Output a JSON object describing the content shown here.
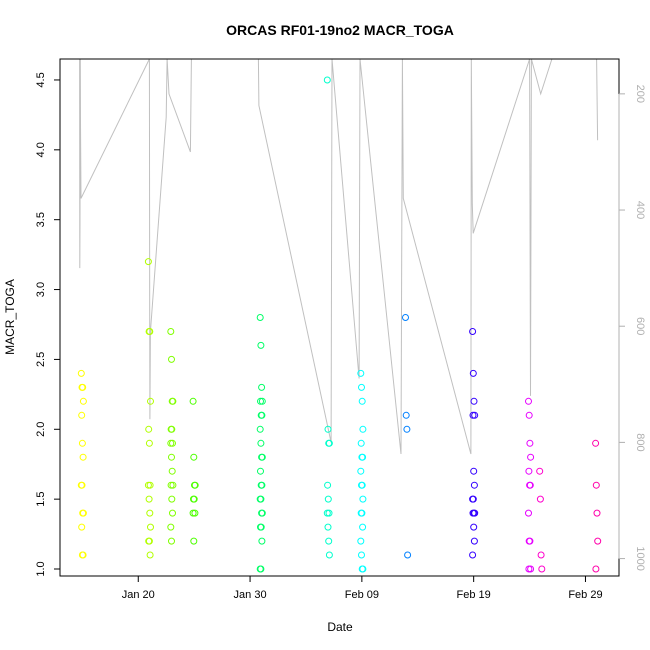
{
  "chart_data": {
    "type": "scatter",
    "title": "ORCAS RF01-19no2 MACR_TOGA",
    "xlabel": "Date",
    "ylabel": "MACR_TOGA",
    "x_tick_labels": [
      "Jan 20",
      "Jan 30",
      "Feb 09",
      "Feb 19",
      "Feb 29"
    ],
    "x_tick_values": [
      "2016-01-20",
      "2016-01-30",
      "2016-02-09",
      "2016-02-19",
      "2016-02-29"
    ],
    "xlim": [
      "2016-01-13",
      "2016-03-03"
    ],
    "ylim": [
      0.95,
      4.65
    ],
    "y_ticks": [
      "1.0",
      "1.5",
      "2.0",
      "2.5",
      "3.0",
      "3.5",
      "4.0",
      "4.5"
    ],
    "right_axis": {
      "label": "",
      "ticks": [
        "200",
        "400",
        "600",
        "800",
        "1000"
      ],
      "reversed": true,
      "range": [
        140,
        1030
      ],
      "color": "#b0b0b0"
    },
    "grid": false,
    "legend": "none",
    "series": [
      {
        "flight": "RF01",
        "date": "2016-01-15",
        "color": "#ffff00",
        "values": [
          2.4,
          2.3,
          2.3,
          2.2,
          2.1,
          1.9,
          1.8,
          1.6,
          1.6,
          1.4,
          1.4,
          1.3,
          1.1,
          1.1
        ]
      },
      {
        "flight": "RF02",
        "date": "2016-01-21",
        "color": "#b2ff00",
        "values": [
          3.2,
          2.7,
          2.7,
          2.2,
          2.0,
          1.9,
          1.6,
          1.6,
          1.5,
          1.4,
          1.3,
          1.2,
          1.2,
          1.1
        ]
      },
      {
        "flight": "RF03",
        "date": "2016-01-23",
        "color": "#80ff00",
        "values": [
          2.7,
          2.5,
          2.2,
          2.2,
          2.0,
          2.0,
          1.9,
          1.9,
          1.8,
          1.7,
          1.6,
          1.6,
          1.5,
          1.4,
          1.3,
          1.2
        ]
      },
      {
        "flight": "RF04",
        "date": "2016-01-25",
        "color": "#4dff00",
        "values": [
          2.2,
          1.8,
          1.6,
          1.6,
          1.5,
          1.5,
          1.4,
          1.4,
          1.2
        ]
      },
      {
        "flight": "RF05",
        "date": "2016-01-31",
        "color": "#00ff66",
        "values": [
          2.8,
          2.6,
          2.3,
          2.2,
          2.2,
          2.1,
          2.1,
          2.0,
          1.9,
          1.8,
          1.8,
          1.7,
          1.6,
          1.6,
          1.5,
          1.5,
          1.4,
          1.4,
          1.3,
          1.3,
          1.2,
          1.0,
          1.0
        ]
      },
      {
        "flight": "RF06",
        "date": "2016-02-06",
        "color": "#00ffcc",
        "values": [
          4.5,
          2.0,
          1.9,
          1.9,
          1.6,
          1.5,
          1.4,
          1.4,
          1.3,
          1.2,
          1.1
        ]
      },
      {
        "flight": "RF07",
        "date": "2016-02-09",
        "color": "#00ffff",
        "values": [
          2.4,
          2.3,
          2.2,
          2.0,
          1.9,
          1.8,
          1.8,
          1.7,
          1.6,
          1.6,
          1.5,
          1.4,
          1.4,
          1.3,
          1.2,
          1.1,
          1.0,
          1.0
        ]
      },
      {
        "flight": "RF08",
        "date": "2016-02-13",
        "color": "#0080ff",
        "values": [
          2.8,
          2.1,
          2.0,
          1.1
        ]
      },
      {
        "flight": "RF09",
        "date": "2016-02-19",
        "color": "#3300ff",
        "values": [
          2.7,
          2.4,
          2.2,
          2.1,
          2.1,
          1.7,
          1.6,
          1.5,
          1.5,
          1.4,
          1.4,
          1.4,
          1.3,
          1.2,
          1.1
        ]
      },
      {
        "flight": "RF10",
        "date": "2016-02-24",
        "color": "#e600ff",
        "values": [
          2.2,
          2.1,
          1.9,
          1.8,
          1.7,
          1.6,
          1.6,
          1.4,
          1.2,
          1.2,
          1.0,
          1.0
        ]
      },
      {
        "flight": "RF11",
        "date": "2016-02-25",
        "color": "#ff00cc",
        "values": [
          1.7,
          1.5,
          1.1,
          1.0
        ]
      },
      {
        "flight": "RF12",
        "date": "2016-03-01",
        "color": "#ff00aa",
        "values": [
          1.9,
          1.6,
          1.4,
          1.2,
          1.0
        ]
      }
    ],
    "altitude_trace": {
      "color": "#c0c0c0",
      "points": [
        [
          "2016-01-15T06:00",
          140
        ],
        [
          "2016-01-15T06:30",
          500
        ],
        [
          "2016-01-15T07:00",
          420
        ],
        [
          "2016-01-15T07:30",
          140
        ],
        [
          "2016-01-15T08:00",
          250
        ],
        [
          "2016-01-15T09:00",
          380
        ],
        [
          "2016-01-21T12:00",
          140
        ],
        [
          "2016-01-21T12:30",
          570
        ],
        [
          "2016-01-21T13:00",
          760
        ],
        [
          "2016-01-21T14:00",
          610
        ],
        [
          "2016-01-23T00:00",
          240
        ],
        [
          "2016-01-23T02:00",
          140
        ],
        [
          "2016-01-23T06:00",
          200
        ],
        [
          "2016-01-25T04:00",
          300
        ],
        [
          "2016-01-25T06:00",
          140
        ],
        [
          "2016-01-31T06:00",
          140
        ],
        [
          "2016-01-31T07:00",
          220
        ],
        [
          "2016-02-06T18:00",
          800
        ],
        [
          "2016-02-06T20:00",
          140
        ],
        [
          "2016-02-09T06:00",
          690
        ],
        [
          "2016-02-09T08:00",
          140
        ],
        [
          "2016-02-13T00:00",
          820
        ],
        [
          "2016-02-13T03:00",
          140
        ],
        [
          "2016-02-13T05:00",
          380
        ],
        [
          "2016-02-19T06:00",
          820
        ],
        [
          "2016-02-19T07:00",
          140
        ],
        [
          "2016-02-19T09:00",
          390
        ],
        [
          "2016-02-19T11:00",
          440
        ],
        [
          "2016-02-24T12:00",
          140
        ],
        [
          "2016-02-24T14:00",
          720
        ],
        [
          "2016-02-24T16:00",
          140
        ],
        [
          "2016-02-25T12:00",
          200
        ],
        [
          "2016-02-26T12:00",
          140
        ],
        [
          "2016-03-01T12:00",
          140
        ],
        [
          "2016-03-01T14:00",
          280
        ]
      ]
    }
  }
}
